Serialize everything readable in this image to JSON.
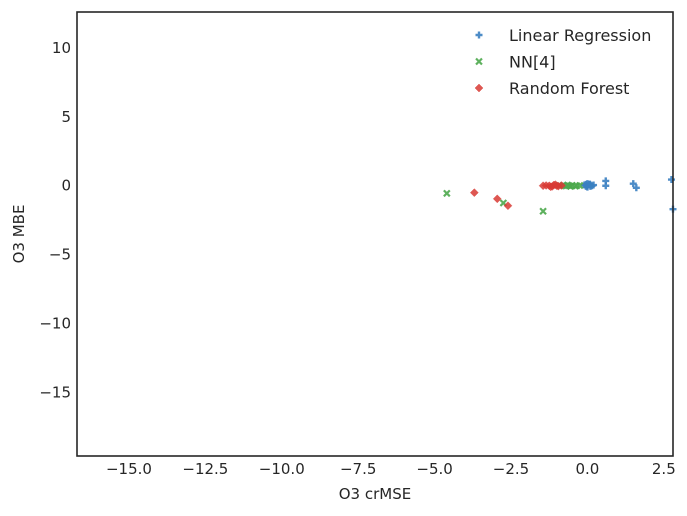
{
  "chart_data": {
    "type": "scatter",
    "xlabel": "O3 crMSE",
    "ylabel": "O3 MBE",
    "xlim": [
      -16.7,
      2.8
    ],
    "ylim": [
      -19.6,
      12.6
    ],
    "xticks": [
      -15.0,
      -12.5,
      -10.0,
      -7.5,
      -5.0,
      -2.5,
      0.0,
      2.5
    ],
    "xtick_labels": [
      "−15.0",
      "−12.5",
      "−10.0",
      "−7.5",
      "−5.0",
      "−2.5",
      "0.0",
      "2.5"
    ],
    "yticks": [
      10,
      5,
      0,
      -5,
      -10,
      -15
    ],
    "ytick_labels": [
      "10",
      "5",
      "0",
      "−5",
      "−10",
      "−15"
    ],
    "grid": false,
    "legend_position": "top-right",
    "series": [
      {
        "name": "Linear Regression",
        "marker": "plus",
        "color": "#3a7fc1",
        "points": [
          [
            -0.1,
            0.05
          ],
          [
            -0.05,
            0.1
          ],
          [
            0.0,
            0.0
          ],
          [
            0.05,
            0.1
          ],
          [
            0.1,
            0.05
          ],
          [
            0.15,
            0.0
          ],
          [
            0.2,
            0.05
          ],
          [
            0.0,
            -0.1
          ],
          [
            -0.05,
            -0.05
          ],
          [
            0.1,
            -0.05
          ],
          [
            0.0,
            0.15
          ],
          [
            0.08,
            0.12
          ],
          [
            0.6,
            0.35
          ],
          [
            0.6,
            0.0
          ],
          [
            1.5,
            0.15
          ],
          [
            1.6,
            -0.15
          ],
          [
            2.75,
            0.45
          ],
          [
            2.8,
            -1.7
          ]
        ]
      },
      {
        "name": "NN[4]",
        "marker": "x",
        "color": "#4da84d",
        "points": [
          [
            -4.6,
            -0.55
          ],
          [
            -2.75,
            -1.25
          ],
          [
            -1.45,
            -1.85
          ],
          [
            -0.9,
            0.0
          ],
          [
            -0.8,
            0.02
          ],
          [
            -0.7,
            -0.02
          ],
          [
            -0.6,
            0.0
          ],
          [
            -0.5,
            0.03
          ],
          [
            -0.4,
            -0.03
          ],
          [
            -0.35,
            0.0
          ],
          [
            -0.25,
            0.02
          ],
          [
            -0.55,
            -0.05
          ],
          [
            -0.65,
            0.05
          ]
        ]
      },
      {
        "name": "Random Forest",
        "marker": "diamond",
        "color": "#d93a34",
        "points": [
          [
            -3.7,
            -0.5
          ],
          [
            -2.95,
            -0.95
          ],
          [
            -2.6,
            -1.45
          ],
          [
            -1.45,
            0.0
          ],
          [
            -1.35,
            0.02
          ],
          [
            -1.25,
            0.0
          ],
          [
            -1.15,
            -0.05
          ],
          [
            -1.1,
            0.05
          ],
          [
            -1.0,
            0.0
          ],
          [
            -0.95,
            -0.03
          ],
          [
            -0.85,
            0.02
          ],
          [
            -1.2,
            -0.08
          ],
          [
            -1.05,
            0.08
          ]
        ]
      }
    ]
  }
}
